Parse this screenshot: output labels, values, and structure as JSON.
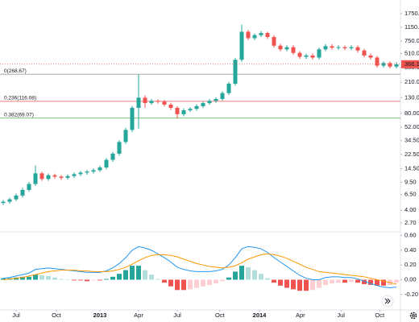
{
  "chart_data": [
    {
      "type": "candlestick",
      "log_scale": true,
      "up_color": "#26a69a",
      "down_color": "#ef5350",
      "categories": [
        null,
        null,
        null,
        null,
        null,
        null,
        null,
        null,
        null,
        null,
        null,
        null,
        null,
        null,
        null,
        null,
        null,
        null,
        null,
        null,
        null,
        null,
        null,
        null,
        null,
        null,
        null,
        null,
        null,
        null,
        null,
        null,
        null,
        null,
        null,
        null,
        null,
        null,
        null,
        null,
        null,
        null,
        null,
        null,
        null,
        null,
        null,
        null,
        null,
        null,
        null,
        null,
        null,
        null,
        null,
        null,
        null,
        null,
        null,
        null,
        null,
        null
      ],
      "open": [
        5.0,
        5.2,
        5.6,
        6.3,
        7.5,
        9,
        12.5,
        10.5,
        11.8,
        11.3,
        10.9,
        11.5,
        12.2,
        12.8,
        13.2,
        13.8,
        15,
        19,
        23,
        33,
        48,
        95,
        130,
        110,
        118,
        115,
        105,
        95,
        78,
        88,
        92,
        100,
        110,
        118,
        125,
        150,
        200,
        420,
        1000,
        820,
        900,
        960,
        850,
        650,
        580,
        620,
        520,
        460,
        480,
        450,
        580,
        640,
        610,
        620,
        600,
        620,
        560,
        480,
        450,
        350,
        380,
        340
      ],
      "high": [
        5.5,
        5.9,
        6.7,
        8,
        9.6,
        16,
        13.2,
        12.5,
        12.4,
        11.9,
        12.1,
        12.9,
        13.5,
        14,
        14.6,
        15.9,
        20.1,
        24.4,
        35,
        51,
        101,
        266,
        140,
        125,
        124,
        121,
        111,
        100,
        93,
        97,
        106,
        117,
        125,
        132,
        159,
        212,
        445,
        1240,
        1060,
        950,
        1020,
        1000,
        900,
        690,
        660,
        660,
        550,
        510,
        510,
        615,
        680,
        680,
        660,
        655,
        660,
        655,
        590,
        510,
        475,
        400,
        400,
        390
      ],
      "low": [
        4.7,
        4.9,
        5.3,
        5.9,
        7.1,
        8.5,
        9.9,
        9.9,
        10.6,
        10.2,
        10.3,
        10.8,
        11.5,
        12,
        12.4,
        13,
        14.1,
        17.9,
        21.6,
        31,
        45,
        50,
        95,
        104,
        108,
        99,
        89,
        68,
        73,
        83,
        87,
        94,
        104,
        111,
        118,
        141,
        188,
        395,
        770,
        770,
        846,
        800,
        610,
        545,
        545,
        490,
        432,
        432,
        423,
        423,
        545,
        573,
        573,
        564,
        564,
        526,
        451,
        423,
        329,
        329,
        320,
        320
      ],
      "close": [
        5.2,
        5.6,
        6.3,
        7.5,
        9,
        12.5,
        10.5,
        11.8,
        11.3,
        10.9,
        11.5,
        12.2,
        12.8,
        13.2,
        13.8,
        15,
        19,
        23,
        33,
        48,
        95,
        130,
        110,
        118,
        115,
        105,
        95,
        78,
        88,
        92,
        100,
        110,
        118,
        125,
        150,
        200,
        420,
        1000,
        820,
        900,
        960,
        850,
        650,
        580,
        620,
        520,
        460,
        480,
        450,
        580,
        640,
        610,
        620,
        600,
        620,
        560,
        480,
        450,
        350,
        380,
        340,
        366
      ],
      "ylim": [
        2.1,
        2670
      ],
      "yticks": [
        {
          "value": 1750,
          "label": "1750.0"
        },
        {
          "value": 1150,
          "label": "1150.0"
        },
        {
          "value": 750,
          "label": "750.0"
        },
        {
          "value": 510,
          "label": "510.0"
        },
        {
          "value": 330,
          "label": "330.0"
        },
        {
          "value": 210,
          "label": "210.0"
        },
        {
          "value": 130,
          "label": "130.0"
        },
        {
          "value": 80,
          "label": "80.00"
        },
        {
          "value": 52,
          "label": "52.00"
        },
        {
          "value": 34.5,
          "label": "34.50"
        },
        {
          "value": 22.5,
          "label": "22.50"
        },
        {
          "value": 14.5,
          "label": "14.50"
        },
        {
          "value": 9.5,
          "label": "9.50"
        },
        {
          "value": 6.5,
          "label": "6.50"
        },
        {
          "value": 4,
          "label": "4.00"
        },
        {
          "value": 2.7,
          "label": "2.70"
        }
      ],
      "xticks": [
        {
          "value": 2,
          "label": "Jul"
        },
        {
          "value": 8.25,
          "label": "Oct"
        },
        {
          "value": 15,
          "label": "2013"
        },
        {
          "value": 21,
          "label": "Apr"
        },
        {
          "value": 27,
          "label": "Jul"
        },
        {
          "value": 33.6,
          "label": "Oct"
        },
        {
          "value": 39.75,
          "label": "2014"
        },
        {
          "value": 46.1,
          "label": "Apr"
        },
        {
          "value": 52.4,
          "label": "Jul"
        },
        {
          "value": 58.4,
          "label": "Oct"
        }
      ],
      "fib_levels": [
        {
          "label": "0(268.67)",
          "value": 268.67,
          "color": "#9e9e9e"
        },
        {
          "label": "0.236(116.08)",
          "value": 116.08,
          "color": "#ef5350"
        },
        {
          "label": "0.382(69.07)",
          "value": 69.07,
          "color": "#4caf50"
        }
      ],
      "last_price": {
        "value": 366.16,
        "label": "366.16",
        "color": "#ef5350"
      }
    },
    {
      "type": "macd",
      "series": [
        {
          "color": "#2196f3",
          "values": [
            0.02,
            0.03,
            0.05,
            0.07,
            0.09,
            0.14,
            0.15,
            0.16,
            0.15,
            0.14,
            0.13,
            0.12,
            0.11,
            0.1,
            0.1,
            0.1,
            0.12,
            0.16,
            0.22,
            0.3,
            0.4,
            0.45,
            0.43,
            0.4,
            0.35,
            0.3,
            0.24,
            0.17,
            0.14,
            0.12,
            0.11,
            0.11,
            0.11,
            0.12,
            0.14,
            0.2,
            0.3,
            0.42,
            0.45,
            0.44,
            0.42,
            0.37,
            0.3,
            0.24,
            0.18,
            0.12,
            0.06,
            0.02,
            0.0,
            0.0,
            0.03,
            0.04,
            0.04,
            0.03,
            0.03,
            0.01,
            -0.02,
            -0.05,
            -0.08,
            -0.1,
            -0.11,
            -0.1
          ]
        },
        {
          "color": "#ff9800",
          "values": [
            0.0,
            0.01,
            0.02,
            0.03,
            0.05,
            0.07,
            0.09,
            0.11,
            0.12,
            0.13,
            0.13,
            0.13,
            0.12,
            0.12,
            0.11,
            0.11,
            0.11,
            0.12,
            0.14,
            0.17,
            0.21,
            0.26,
            0.3,
            0.33,
            0.34,
            0.34,
            0.33,
            0.31,
            0.28,
            0.25,
            0.22,
            0.2,
            0.18,
            0.17,
            0.16,
            0.17,
            0.19,
            0.23,
            0.28,
            0.31,
            0.34,
            0.35,
            0.34,
            0.32,
            0.29,
            0.25,
            0.21,
            0.17,
            0.14,
            0.11,
            0.1,
            0.09,
            0.08,
            0.07,
            0.06,
            0.05,
            0.04,
            0.02,
            0.0,
            -0.02,
            -0.04,
            -0.06
          ]
        }
      ],
      "histogram": [
        0.02,
        0.02,
        0.03,
        0.04,
        0.04,
        0.07,
        0.06,
        0.05,
        0.03,
        0.01,
        0.0,
        -0.01,
        -0.01,
        -0.02,
        -0.01,
        -0.01,
        0.01,
        0.04,
        0.08,
        0.13,
        0.19,
        0.19,
        0.13,
        0.07,
        0.01,
        -0.04,
        -0.09,
        -0.14,
        -0.14,
        -0.13,
        -0.11,
        -0.09,
        -0.07,
        -0.05,
        -0.02,
        0.03,
        0.11,
        0.19,
        0.17,
        0.13,
        0.08,
        0.02,
        -0.04,
        -0.08,
        -0.11,
        -0.13,
        -0.15,
        -0.15,
        -0.14,
        -0.11,
        -0.07,
        -0.05,
        -0.04,
        -0.04,
        -0.03,
        -0.04,
        -0.06,
        -0.07,
        -0.08,
        -0.08,
        -0.07,
        -0.04
      ],
      "histogram_colors": {
        "pos_up": "#26a69a",
        "pos_down": "#b2dfdb",
        "neg_down": "#ef5350",
        "neg_up": "#ffcdd2"
      },
      "ylim": [
        -0.41,
        0.65
      ],
      "yticks": [
        {
          "value": 0.6,
          "label": "0.60"
        },
        {
          "value": 0.4,
          "label": "0.40"
        },
        {
          "value": 0.2,
          "label": "0.20"
        },
        {
          "value": 0,
          "label": "0.00"
        },
        {
          "value": -0.2,
          "label": "-0.20"
        }
      ]
    }
  ]
}
